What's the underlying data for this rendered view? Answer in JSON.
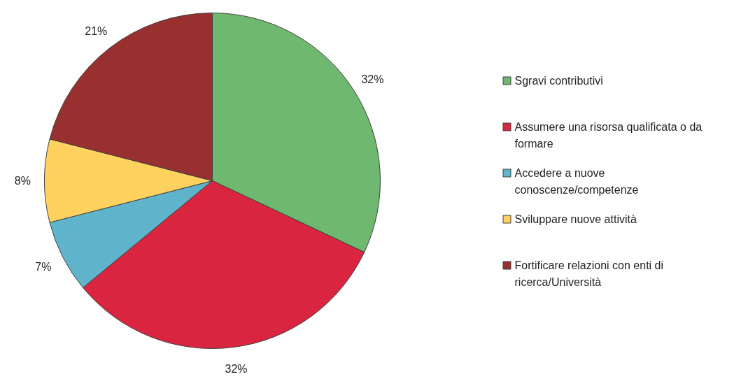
{
  "chart_data": {
    "type": "pie",
    "categories": [
      "Sgravi contributivi",
      "Assumere una risorsa qualificata o da formare",
      "Accedere a nuove conoscenze/competenze",
      "Sviluppare nuove attività",
      "Fortificare relazioni con enti di ricerca/Università"
    ],
    "values": [
      32,
      32,
      7,
      8,
      21
    ],
    "colors": [
      "#6fb86f",
      "#d9253f",
      "#5fb4cc",
      "#ffd25f",
      "#993030"
    ],
    "value_labels": [
      "32%",
      "32%",
      "7%",
      "8%",
      "21%"
    ],
    "legend": "right"
  }
}
